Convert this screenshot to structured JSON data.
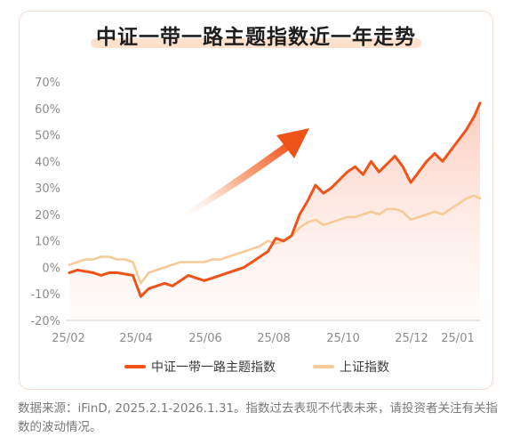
{
  "title": "中证一带一路主题指数近一年走势",
  "footnote": "数据来源：iFinD, 2025.2.1-2026.1.31。指数过去表现不代表未来，请投资者关注有关指数的波动情况。",
  "colors": {
    "primary": "#f0531a",
    "secondary": "#f6cb98",
    "axis_text": "#8c8c8c",
    "grid": "#eeeeee"
  },
  "chart_data": {
    "type": "line",
    "title": "中证一带一路主题指数近一年走势",
    "xlabel": "",
    "ylabel": "",
    "x_tick_labels": [
      "25/02",
      "25/04",
      "25/06",
      "25/08",
      "25/10",
      "25/12",
      "25/01"
    ],
    "y_tick_labels": [
      "70%",
      "60%",
      "50%",
      "40%",
      "30%",
      "20%",
      "10%",
      "0%",
      "-10%",
      "-20%"
    ],
    "ylim": [
      -20,
      70
    ],
    "grid": "none",
    "legend_position": "bottom",
    "x": [
      "2025-02-03",
      "2025-02-10",
      "2025-02-17",
      "2025-02-24",
      "2025-03-03",
      "2025-03-10",
      "2025-03-17",
      "2025-03-24",
      "2025-03-31",
      "2025-04-07",
      "2025-04-14",
      "2025-04-21",
      "2025-04-28",
      "2025-05-05",
      "2025-05-12",
      "2025-05-19",
      "2025-05-26",
      "2025-06-02",
      "2025-06-09",
      "2025-06-16",
      "2025-06-23",
      "2025-06-30",
      "2025-07-07",
      "2025-07-14",
      "2025-07-21",
      "2025-07-28",
      "2025-08-04",
      "2025-08-11",
      "2025-08-18",
      "2025-08-25",
      "2025-09-01",
      "2025-09-08",
      "2025-09-15",
      "2025-09-22",
      "2025-09-29",
      "2025-10-06",
      "2025-10-13",
      "2025-10-20",
      "2025-10-27",
      "2025-11-03",
      "2025-11-10",
      "2025-11-17",
      "2025-11-24",
      "2025-12-01",
      "2025-12-08",
      "2025-12-15",
      "2025-12-22",
      "2025-12-29",
      "2026-01-05",
      "2026-01-12",
      "2026-01-19",
      "2026-01-26",
      "2026-01-31"
    ],
    "series": [
      {
        "name": "中证一带一路主题指数",
        "color": "#f0531a",
        "values": [
          -2,
          -1,
          -1.5,
          -2,
          -3,
          -2,
          -2,
          -2.5,
          -3,
          -11,
          -8,
          -7,
          -6,
          -7,
          -5,
          -3,
          -4,
          -5,
          -4,
          -3,
          -2,
          -1,
          0,
          2,
          4,
          6,
          11,
          10,
          12,
          20,
          25,
          31,
          28,
          30,
          33,
          36,
          38,
          35,
          40,
          36,
          39,
          42,
          38,
          32,
          36,
          40,
          43,
          40,
          44,
          48,
          52,
          57,
          62
        ]
      },
      {
        "name": "上证指数",
        "color": "#f6cb98",
        "values": [
          1,
          2,
          3,
          3,
          4,
          4,
          3,
          3,
          2,
          -6,
          -2,
          -1,
          0,
          1,
          2,
          2,
          2,
          2,
          3,
          3,
          4,
          5,
          6,
          7,
          8,
          10,
          9,
          10,
          12,
          15,
          17,
          18,
          16,
          17,
          18,
          19,
          19,
          20,
          21,
          20,
          22,
          22,
          21,
          18,
          19,
          20,
          21,
          20,
          22,
          24,
          26,
          27,
          26
        ]
      }
    ],
    "y_range_units": "%"
  }
}
